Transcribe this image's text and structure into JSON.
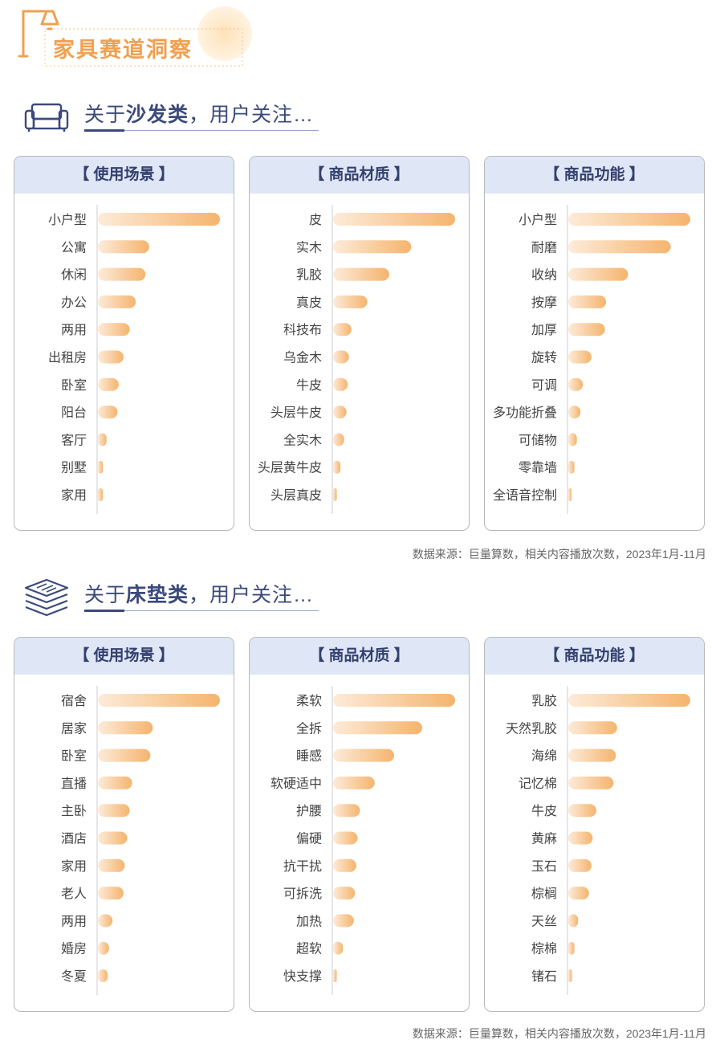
{
  "header": {
    "title": "家具赛道洞察",
    "icon": "floor-lamp-icon",
    "accent": "#f0a050"
  },
  "colors": {
    "bar_start": "#fdebd9",
    "bar_end": "#f5b46e",
    "heading": "#3b4a7c",
    "panel_head_bg": "#dfe6f6"
  },
  "sections": [
    {
      "title_prefix": "关于",
      "title_bold": "沙发类",
      "title_suffix": "，用户关注…",
      "icon": "sofa-icon",
      "source": "数据来源：巨量算数，相关内容播放次数，2023年1月-11月",
      "chart_data": [
        {
          "type": "bar",
          "orientation": "horizontal",
          "title": "【 使用场景 】",
          "categories": [
            "小户型",
            "公寓",
            "休闲",
            "办公",
            "两用",
            "出租房",
            "卧室",
            "阳台",
            "客厅",
            "别墅",
            "家用"
          ],
          "values": [
            1.0,
            0.42,
            0.39,
            0.31,
            0.26,
            0.21,
            0.17,
            0.16,
            0.07,
            0.04,
            0.04
          ]
        },
        {
          "type": "bar",
          "orientation": "horizontal",
          "title": "【 商品材质 】",
          "categories": [
            "皮",
            "实木",
            "乳胶",
            "真皮",
            "科技布",
            "乌金木",
            "牛皮",
            "头层牛皮",
            "全实木",
            "头层黄牛皮",
            "头层真皮"
          ],
          "values": [
            1.0,
            0.64,
            0.46,
            0.28,
            0.15,
            0.13,
            0.12,
            0.11,
            0.09,
            0.06,
            0.03
          ]
        },
        {
          "type": "bar",
          "orientation": "horizontal",
          "title": "【 商品功能 】",
          "categories": [
            "小户型",
            "耐磨",
            "收纳",
            "按摩",
            "加厚",
            "旋转",
            "可调",
            "多功能折叠",
            "可储物",
            "零靠墙",
            "全语音控制"
          ],
          "values": [
            1.0,
            0.84,
            0.49,
            0.31,
            0.3,
            0.19,
            0.12,
            0.1,
            0.07,
            0.05,
            0.02
          ]
        }
      ]
    },
    {
      "title_prefix": "关于",
      "title_bold": "床垫类",
      "title_suffix": "，用户关注…",
      "icon": "mattress-icon",
      "source": "数据来源：巨量算数，相关内容播放次数，2023年1月-11月",
      "chart_data": [
        {
          "type": "bar",
          "orientation": "horizontal",
          "title": "【 使用场景 】",
          "categories": [
            "宿舍",
            "居家",
            "卧室",
            "直播",
            "主卧",
            "酒店",
            "家用",
            "老人",
            "两用",
            "婚房",
            "冬夏"
          ],
          "values": [
            1.0,
            0.45,
            0.43,
            0.28,
            0.26,
            0.24,
            0.22,
            0.21,
            0.12,
            0.09,
            0.08
          ]
        },
        {
          "type": "bar",
          "orientation": "horizontal",
          "title": "【 商品材质 】",
          "categories": [
            "柔软",
            "全拆",
            "睡感",
            "软硬适中",
            "护腰",
            "偏硬",
            "抗干扰",
            "可拆洗",
            "加热",
            "超软",
            "快支撑"
          ],
          "values": [
            1.0,
            0.73,
            0.5,
            0.34,
            0.22,
            0.2,
            0.19,
            0.18,
            0.17,
            0.08,
            0.03
          ]
        },
        {
          "type": "bar",
          "orientation": "horizontal",
          "title": "【 商品功能 】",
          "categories": [
            "乳胶",
            "天然乳胶",
            "海绵",
            "记忆棉",
            "牛皮",
            "黄麻",
            "玉石",
            "棕榈",
            "天丝",
            "棕棉",
            "锗石"
          ],
          "values": [
            1.0,
            0.4,
            0.39,
            0.37,
            0.23,
            0.2,
            0.19,
            0.17,
            0.08,
            0.05,
            0.03
          ]
        }
      ]
    }
  ]
}
